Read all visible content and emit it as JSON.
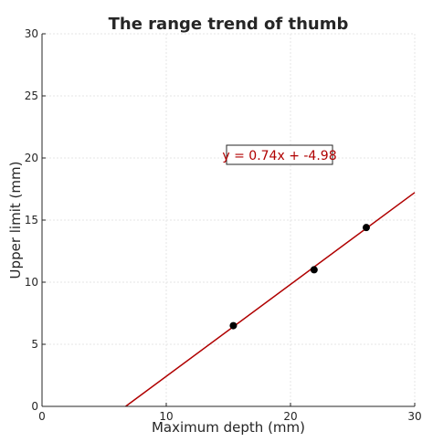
{
  "chart_data": {
    "type": "scatter",
    "title": "The range trend of thumb",
    "xlabel": "Maximum depth (mm)",
    "ylabel": "Upper limit (mm)",
    "xlim": [
      0,
      30
    ],
    "ylim": [
      0,
      30
    ],
    "xticks": [
      0,
      10,
      20,
      30
    ],
    "yticks": [
      0,
      5,
      10,
      15,
      20,
      25,
      30
    ],
    "grid": true,
    "points": [
      {
        "x": 15.4,
        "y": 6.5
      },
      {
        "x": 21.9,
        "y": 11.0
      },
      {
        "x": 26.1,
        "y": 14.4
      }
    ],
    "fit_line": {
      "slope": 0.74,
      "intercept": -4.98
    },
    "annotation": "y = 0.74x + -4.98",
    "colors": {
      "points": "#000000",
      "fit_line": "#b00000",
      "grid": "#e6e6e6",
      "axis": "#262626"
    }
  }
}
